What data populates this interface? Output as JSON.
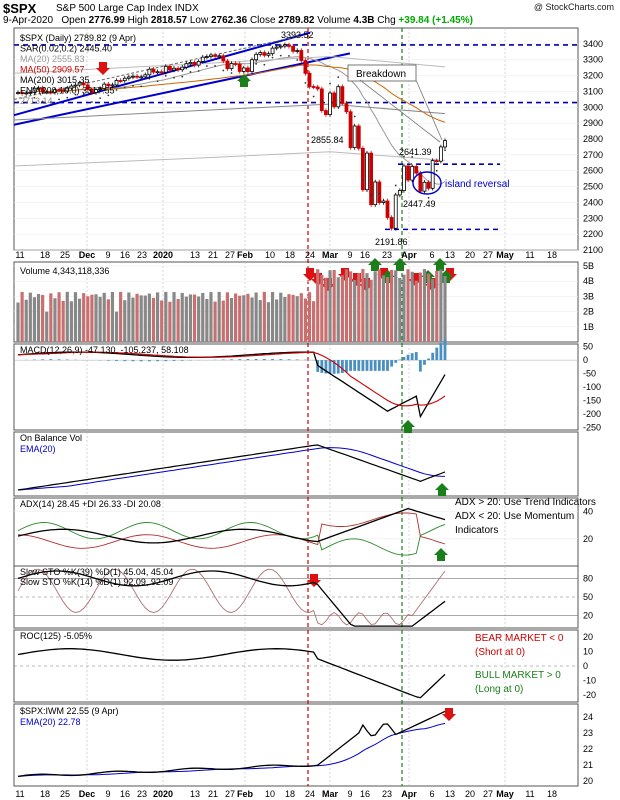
{
  "header": {
    "symbol": "$SPX",
    "name": "S&P 500 Large Cap Index",
    "exchange": "INDX",
    "watermark": "@ StockCharts.com",
    "date": "9-Apr-2020",
    "open_label": "Open",
    "open": "2776.99",
    "high_label": "High",
    "high": "2818.57",
    "low_label": "Low",
    "low": "2762.36",
    "close_label": "Close",
    "close": "2789.82",
    "volume_label": "Volume",
    "volume": "4.3B",
    "chg_label": "Chg",
    "chg": "+39.84 (+1.45%)"
  },
  "colors": {
    "up": "#000000",
    "down": "#cc0000",
    "blue": "#0000cc",
    "green_arrow": "#1a7f1a",
    "red_arrow": "#dd1111",
    "vol_red": "#c87070",
    "vol_gray": "#888888",
    "hist": "#4a8fc0"
  },
  "x_axis": {
    "labels": [
      "11",
      "18",
      "25",
      "Dec",
      "9",
      "16",
      "23",
      "2020",
      "13",
      "21",
      "27",
      "Feb",
      "10",
      "18",
      "24",
      "Mar",
      "9",
      "16",
      "23",
      "Apr",
      "6",
      "13",
      "20",
      "27",
      "May",
      "11",
      "18"
    ]
  },
  "price_panel": {
    "legend": [
      "$SPX (Daily) 2789.82 (9 Apr)",
      "SAR(0.02,0.2) 2445.40",
      "MA(20) 2555.83",
      "MA(50) 2909.57",
      "MA(200) 3015.35",
      "ENV(200,10.0) 3317.55",
      "2713.14"
    ],
    "annotations": [
      "3393.52",
      "Breakdown",
      "2855.84",
      "2641.39",
      "island reversal",
      "2447.49",
      "2191.86"
    ]
  },
  "volume_panel": {
    "legend": "Volume 4,343,118,336"
  },
  "macd_panel": {
    "legend": "MACD(12,26,9) -47.130, -105.237, 58.108"
  },
  "obv_panel": {
    "legend1": "On Balance Vol",
    "legend2": "EMA(20)"
  },
  "adx_panel": {
    "legend": "ADX(14) 28.45 +DI 26.33 -DI 20.08",
    "note1": "ADX > 20: Use Trend Indicators",
    "note2": "ADX < 20: Use Momentum",
    "note3": "Indicators"
  },
  "sto_panel": {
    "legend1": "Slow STO %K(39) %D(1) 45.04, 45.04",
    "legend2": "Slow STO %K(14) %D(1) 92.09, 92.09"
  },
  "roc_panel": {
    "legend": "ROC(125) -5.05%",
    "bear1": "BEAR MARKET < 0",
    "bear2": "(Short at 0)",
    "bull1": "BULL MARKET > 0",
    "bull2": "(Long at 0)"
  },
  "ratio_panel": {
    "legend1": "$SPX:IWM 22.55 (9 Apr)",
    "legend2": "EMA(20) 22.78"
  },
  "chart_data": [
    {
      "type": "candlestick",
      "title": "$SPX S&P 500 Large Cap Index INDX",
      "ylim": [
        2100,
        3500
      ],
      "y_ticks": [
        2100,
        2200,
        2300,
        2400,
        2500,
        2600,
        2700,
        2800,
        2900,
        3000,
        3100,
        3200,
        3300,
        3400
      ],
      "x_start": "2019-11-08",
      "x_end": "2020-04-09",
      "close": [
        3093,
        3087,
        3091,
        3094,
        3120,
        3122,
        3096,
        3096,
        3094,
        3111,
        3110,
        3103,
        3121,
        3134,
        3140,
        3153,
        3141,
        3113,
        3093,
        3112,
        3118,
        3146,
        3135,
        3141,
        3169,
        3168,
        3183,
        3191,
        3196,
        3192,
        3192,
        3205,
        3240,
        3222,
        3224,
        3221,
        3258,
        3235,
        3246,
        3237,
        3253,
        3275,
        3283,
        3266,
        3289,
        3316,
        3320,
        3330,
        3321,
        3325,
        3292,
        3244,
        3276,
        3273,
        3226,
        3248,
        3225,
        3300,
        3334,
        3345,
        3328,
        3338,
        3373,
        3380,
        3386,
        3394,
        3384,
        3353,
        3358,
        3295,
        3214,
        3131,
        3128,
        3116,
        2979,
        2954,
        3090,
        3003,
        3130,
        3024,
        2972,
        2746,
        2882,
        2741,
        2480,
        2711,
        2386,
        2529,
        2399,
        2409,
        2305,
        2237,
        2447,
        2475,
        2630,
        2541,
        2627,
        2585,
        2471,
        2527,
        2489,
        2664,
        2660,
        2750,
        2790
      ],
      "annotations": {
        "high": 3393.52,
        "low": 2191.86,
        "breakdown_level": 2855.84,
        "gap_top": 2641.39,
        "gap_bottom": 2447.49
      }
    },
    {
      "type": "bar",
      "title": "Volume",
      "ylim": [
        0,
        5000000000
      ],
      "y_ticks_label": [
        "1B",
        "2B",
        "3B",
        "4B",
        "5B"
      ]
    },
    {
      "type": "line",
      "title": "MACD(12,26,9)",
      "ylim": [
        -250,
        60
      ],
      "y_ticks": [
        -250,
        -200,
        -150,
        -100,
        -50,
        0,
        50
      ],
      "series": [
        {
          "name": "MACD",
          "last": -47.13
        },
        {
          "name": "Signal",
          "last": -105.237
        },
        {
          "name": "Histogram",
          "last": 58.108
        }
      ]
    },
    {
      "type": "line",
      "title": "On Balance Vol",
      "series": [
        {
          "name": "OBV"
        },
        {
          "name": "EMA(20)"
        }
      ]
    },
    {
      "type": "line",
      "title": "ADX(14)",
      "y_ticks": [
        20,
        40
      ],
      "series": [
        {
          "name": "ADX",
          "last": 28.45
        },
        {
          "name": "+DI",
          "last": 26.33
        },
        {
          "name": "-DI",
          "last": 20.08
        }
      ]
    },
    {
      "type": "line",
      "title": "Slow STO",
      "ylim": [
        0,
        100
      ],
      "y_ticks": [
        20,
        50,
        80
      ],
      "series": [
        {
          "name": "%K(39)",
          "last": 45.04
        },
        {
          "name": "%K(14)",
          "last": 92.09
        }
      ]
    },
    {
      "type": "line",
      "title": "ROC(125)",
      "y_ticks": [
        -20,
        -10,
        0,
        10,
        20
      ],
      "series": [
        {
          "name": "ROC(125)",
          "last": -5.05
        }
      ]
    },
    {
      "type": "line",
      "title": "$SPX:IWM",
      "ylim": [
        20,
        24.5
      ],
      "y_ticks": [
        20,
        21,
        22,
        23,
        24
      ],
      "series": [
        {
          "name": "$SPX:IWM",
          "last": 22.55
        },
        {
          "name": "EMA(20)",
          "last": 22.78
        }
      ]
    }
  ]
}
